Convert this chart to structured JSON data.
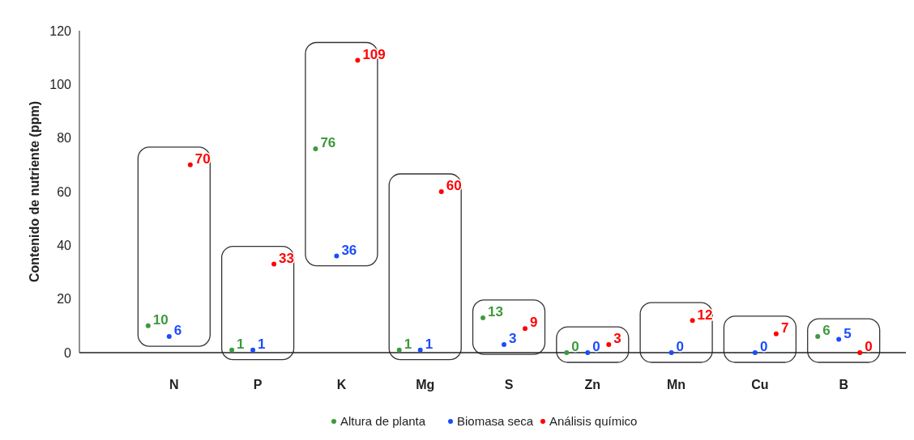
{
  "chart_data": {
    "type": "scatter",
    "ylabel": "Contenido de nutriente (ppm)",
    "categories": [
      "N",
      "P",
      "K",
      "Mg",
      "S",
      "Zn",
      "Mn",
      "Cu",
      "B"
    ],
    "series": [
      {
        "name": "Altura de planta",
        "color": "#3c9a3c",
        "values": [
          10,
          1,
          76,
          1,
          13,
          0,
          null,
          null,
          6
        ]
      },
      {
        "name": "Biomasa seca",
        "color": "#1a4cff",
        "values": [
          6,
          1,
          36,
          1,
          3,
          0,
          0,
          0,
          5
        ]
      },
      {
        "name": "Análisis químico",
        "color": "#ff0000",
        "values": [
          70,
          33,
          109,
          60,
          9,
          3,
          12,
          7,
          0
        ]
      }
    ],
    "ylim": [
      0,
      120
    ],
    "yticks": [
      0,
      20,
      40,
      60,
      80,
      100,
      120
    ],
    "grid": false,
    "legend": "bottom",
    "marker": "circle",
    "data_labels": true
  }
}
